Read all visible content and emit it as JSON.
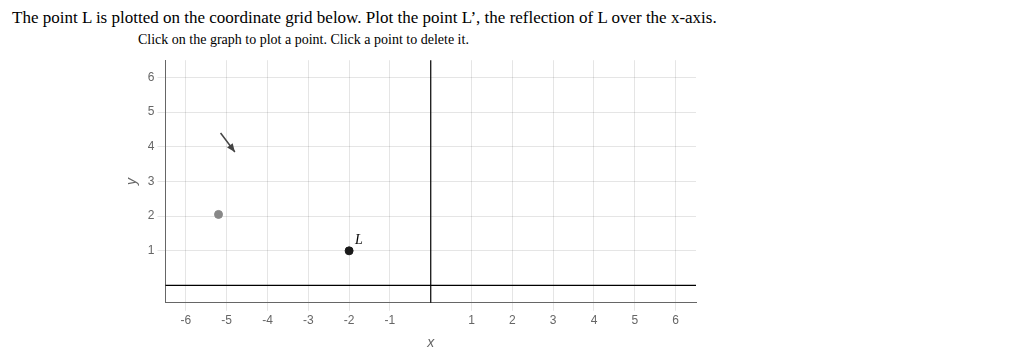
{
  "chart_data": {
    "type": "scatter",
    "title": "The point L is plotted on the coordinate grid below. Plot the point L’, the reflection of L over the x-axis.",
    "subtitle": "Click on the graph to plot a point. Click a point to delete it.",
    "xlabel": "x",
    "ylabel": "y",
    "xlim": [
      -6.5,
      6.5
    ],
    "ylim": [
      -0.5,
      6.5
    ],
    "xticks": [
      -6,
      -5,
      -4,
      -3,
      -2,
      -1,
      1,
      2,
      3,
      4,
      5,
      6
    ],
    "yticks": [
      1,
      2,
      3,
      4,
      5,
      6
    ],
    "grid": true,
    "legend": false,
    "series": [
      {
        "name": "L",
        "x": [
          -2
        ],
        "y": [
          1
        ],
        "color": "#1a1a1a",
        "marker": "circle"
      },
      {
        "x": [
          -5.2
        ],
        "y": [
          2.05
        ],
        "color": "#888888",
        "marker": "circle"
      },
      {
        "type": "line",
        "x": [
          -5.15,
          -4.8
        ],
        "y": [
          4.4,
          3.85
        ],
        "color": "#444444",
        "marker": "arrow"
      }
    ]
  }
}
